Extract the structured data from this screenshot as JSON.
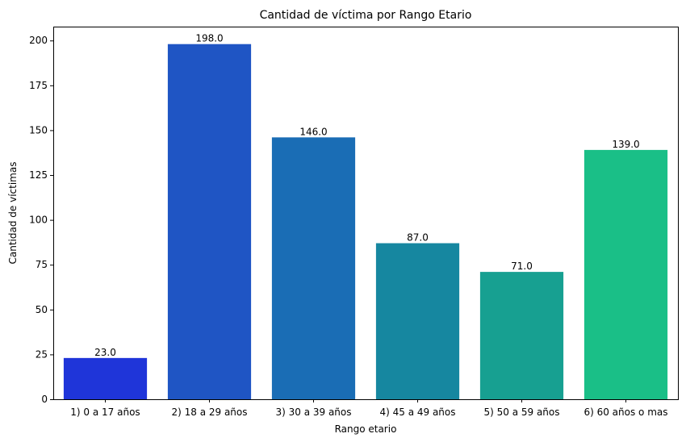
{
  "chart_data": {
    "type": "bar",
    "title": "Cantidad de víctima por Rango Etario",
    "xlabel": "Rango etario",
    "ylabel": "Cantidad de víctimas",
    "categories": [
      "1) 0 a 17 años",
      "2) 18 a 29 años",
      "3) 30 a 39 años",
      "4) 45 a 49 años",
      "5) 50 a 59 años",
      "6) 60 años o mas"
    ],
    "values": [
      23,
      198,
      146,
      87,
      71,
      139
    ],
    "value_labels": [
      "23.0",
      "198.0",
      "146.0",
      "87.0",
      "71.0",
      "139.0"
    ],
    "bar_colors": [
      "#1f35d9",
      "#1f55c4",
      "#1a6db5",
      "#1687a0",
      "#17a091",
      "#1abf87"
    ],
    "ylim": [
      0,
      207.75
    ],
    "yticks": [
      0,
      25,
      50,
      75,
      100,
      125,
      150,
      175,
      200
    ],
    "ytick_labels": [
      "0",
      "25",
      "50",
      "75",
      "100",
      "125",
      "150",
      "175",
      "200"
    ],
    "grid": false,
    "legend": "none"
  }
}
